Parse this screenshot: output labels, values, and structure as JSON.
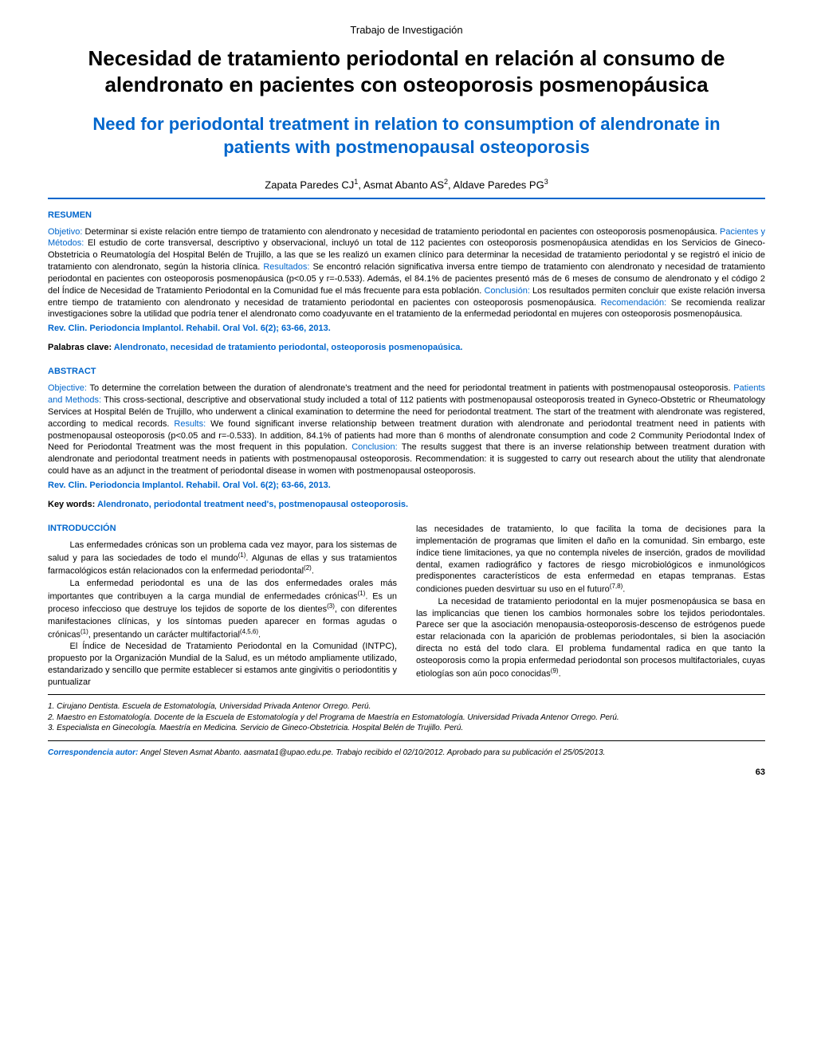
{
  "header": {
    "doc_type": "Trabajo de Investigación",
    "title_es": "Necesidad de tratamiento periodontal en relación al consumo de alendronato en pacientes con osteoporosis posmenopáusica",
    "title_en": "Need for periodontal treatment in relation to consumption of alendronate in patients with postmenopausal osteoporosis",
    "authors": "Zapata Paredes CJ¹, Asmat Abanto AS², Aldave Paredes PG³"
  },
  "resumen": {
    "heading": "RESUMEN",
    "objetivo_label": "Objetivo:",
    "objetivo": " Determinar si existe relación entre tiempo de tratamiento con alendronato y necesidad de tratamiento periodontal en pacientes con osteoporosis posmenopáusica. ",
    "pacientes_label": "Pacientes y Métodos:",
    "pacientes": " El estudio de corte transversal, descriptivo y observacional, incluyó un total de 112 pacientes con osteoporosis posmenopáusica atendidas en los Servicios de Gineco-Obstetricia o Reumatología del Hospital Belén de Trujillo, a las que se les realizó un examen clínico para determinar la necesidad de tratamiento periodontal y se registró el inicio de tratamiento con alendronato, según la historia clínica. ",
    "resultados_label": "Resultados:",
    "resultados": " Se encontró relación significativa inversa entre tiempo de tratamiento con alendronato y necesidad de tratamiento periodontal en pacientes con osteoporosis posmenopáusica (p<0.05 y r=-0.533). Además, el 84.1% de pacientes presentó más de 6 meses de consumo de alendronato y el código 2 del Índice de Necesidad de Tratamiento Periodontal en la Comunidad fue el más frecuente para esta población. ",
    "conclusion_label": "Conclusión:",
    "conclusion": " Los resultados permiten concluir que existe relación inversa entre tiempo de tratamiento con alendronato y necesidad de tratamiento periodontal en pacientes con osteoporosis posmenopáusica. ",
    "recomendacion_label": "Recomendación:",
    "recomendacion": " Se recomienda realizar investigaciones sobre la utilidad que podría tener el alendronato como coadyuvante en el tratamiento de la enfermedad periodontal en mujeres con osteoporosis posmenopáusica.",
    "citation": "Rev. Clin. Periodoncia Implantol. Rehabil. Oral Vol. 6(2); 63-66, 2013.",
    "palabras_label": "Palabras clave: ",
    "palabras": "Alendronato, necesidad de tratamiento periodontal, osteoporosis posmenopaúsica."
  },
  "abstract": {
    "heading": "ABSTRACT",
    "objective_label": "Objective:",
    "objective": " To determine the correlation between the duration of alendronate's treatment and the need for periodontal treatment in patients with postmenopausal osteoporosis. ",
    "patients_label": "Patients and Methods:",
    "patients": " This cross-sectional, descriptive and observational study included a total of 112 patients with postmenopausal osteoporosis treated in Gyneco-Obstetric or Rheumatology Services at Hospital Belén de Trujillo, who underwent a clinical examination to determine the need for periodontal treatment. The start of the treatment with alendronate was registered, according to medical records. ",
    "results_label": "Results:",
    "results": " We found significant inverse relationship between treatment duration with alendronate and periodontal treatment need in patients with postmenopausal osteoporosis (p<0.05 and r=-0.533). In addition, 84.1% of patients had more than 6 months of alendronate consumption and code 2 Community Periodontal Index of Need for Periodontal Treatment was the most frequent in this population. ",
    "conclusion_label": "Conclusion:",
    "conclusion": " The results suggest that there is an inverse relationship between treatment duration with alendronate and periodontal treatment needs in patients with postmenopausal osteoporosis. Recommendation: it is suggested to carry out research about the utility that alendronate could have as an adjunct in the treatment of periodontal disease in women with postmenopausal osteoporosis.",
    "citation": "Rev. Clin. Periodoncia Implantol. Rehabil. Oral Vol. 6(2); 63-66, 2013.",
    "keywords_label": "Key words: ",
    "keywords": "Alendronato, periodontal treatment need's, postmenopausal osteoporosis."
  },
  "introduccion": {
    "heading": "INTRODUCCIÓN",
    "p1": "Las enfermedades crónicas son un problema cada vez mayor, para los sistemas de salud y para las sociedades de todo el mundo(1). Algunas de ellas y sus tratamientos farmacológicos están relacionados con la enfermedad periodontal(2).",
    "p2": "La enfermedad periodontal es una de las dos enfermedades orales más importantes que contribuyen a la carga mundial de enfermedades crónicas(1). Es un proceso infeccioso que destruye los tejidos de soporte de los dientes(3), con diferentes manifestaciones clínicas, y los síntomas pueden aparecer en formas agudas o crónicas(1), presentando un carácter multifactorial(4,5,6).",
    "p3": "El Índice de Necesidad de Tratamiento Periodontal en la Comunidad (INTPC), propuesto por la Organización Mundial de la Salud, es un método ampliamente utilizado, estandarizado y sencillo que permite establecer si estamos ante gingivitis o periodontitis y puntualizar",
    "p4": "las necesidades de tratamiento, lo que facilita la toma de decisiones para la implementación de programas que limiten el daño en la comunidad. Sin embargo, este índice tiene limitaciones, ya que no contempla niveles de inserción, grados de movilidad dental, examen radiográfico y factores de riesgo microbiológicos e inmunológicos predisponentes característicos de esta enfermedad en etapas tempranas. Estas condiciones pueden desvirtuar su uso en el futuro(7,8).",
    "p5": "La necesidad de tratamiento periodontal en la mujer posmenopáusica se basa en las implicancias que tienen los cambios hormonales sobre los tejidos periodontales. Parece ser que la asociación menopausia-osteoporosis-descenso de estrógenos puede estar relacionada con la aparición de problemas periodontales, si bien la asociación directa no está del todo clara. El problema fundamental radica en que tanto la osteoporosis como la propia enfermedad periodontal son procesos multifactoriales, cuyas etiologías son aún poco conocidas(9)."
  },
  "affiliations": {
    "a1": "1. Cirujano Dentista. Escuela de Estomatología, Universidad Privada Antenor Orrego. Perú.",
    "a2": "2. Maestro en Estomatología. Docente de la Escuela de Estomatología y del Programa de Maestría en Estomatología. Universidad Privada Antenor Orrego. Perú.",
    "a3": "3. Especialista en Ginecología. Maestría en Medicina. Servicio de Gineco-Obstetricia. Hospital Belén de Trujillo. Perú."
  },
  "correspondence": {
    "label": "Correspondencia autor: ",
    "text": "Angel Steven Asmat Abanto. aasmata1@upao.edu.pe. Trabajo recibido el 02/10/2012. Aprobado para su publicación el 25/05/2013."
  },
  "page_number": "63",
  "colors": {
    "accent": "#0066cc",
    "text": "#000000",
    "background": "#ffffff"
  }
}
